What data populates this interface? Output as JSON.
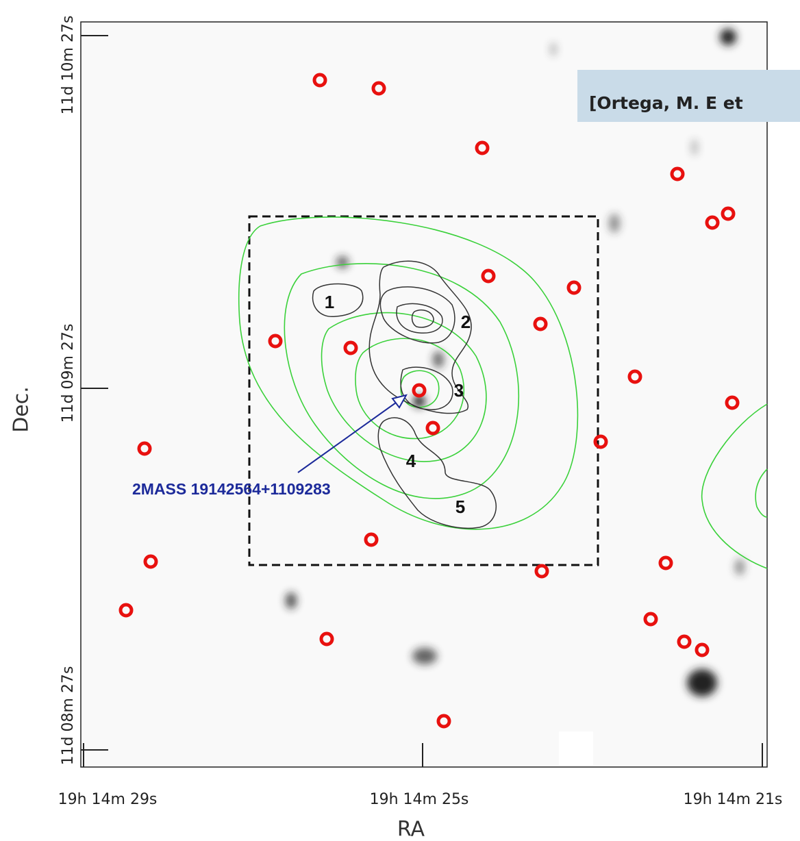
{
  "figure": {
    "x_axis_label": "RA",
    "y_axis_label": "Dec.",
    "x_tick_labels": [
      "19h 14m 29s",
      "19h 14m 25s",
      "19h 14m 21s"
    ],
    "y_tick_labels": [
      "11d 10m 27s",
      "11d 09m 27s",
      "11d 08m 27s"
    ],
    "region_labels": [
      "1",
      "2",
      "3",
      "4",
      "5"
    ],
    "annotation": "2MASS 19142564+1109283",
    "banner": "[Ortega, M. E et"
  }
}
